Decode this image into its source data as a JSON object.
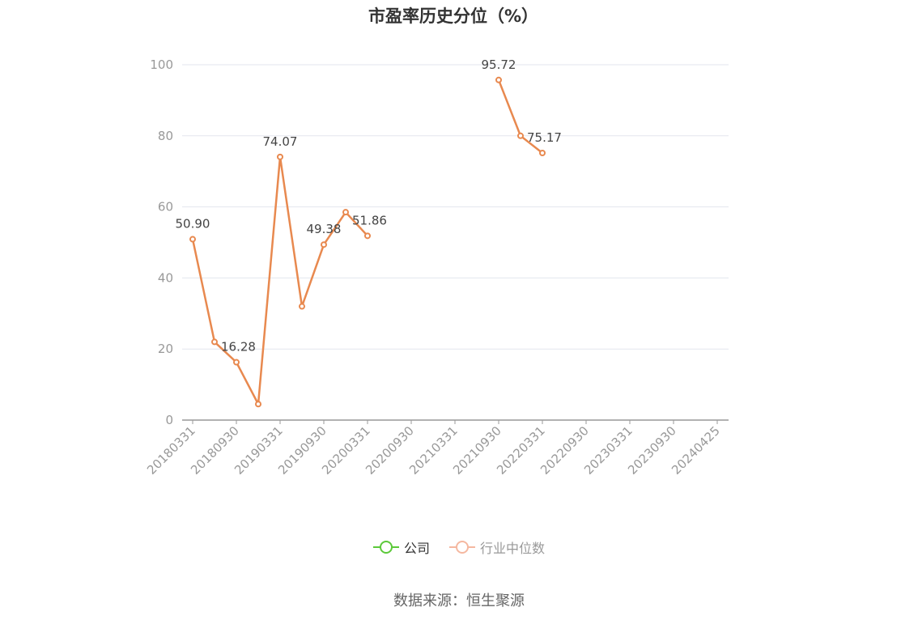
{
  "title": "市盈率历史分位（%）",
  "source": "数据来源：恒生聚源",
  "legend": [
    {
      "label": "公司",
      "color": "#5cc93a"
    },
    {
      "label": "行业中位数",
      "color": "#f5b8a0"
    }
  ],
  "colors": {
    "series_line": "#e8894f",
    "grid": "#e3e6ee",
    "axis": "#999999"
  },
  "chart_data": {
    "type": "line",
    "title": "市盈率历史分位（%）",
    "xlabel": "",
    "ylabel": "",
    "ylim": [
      0,
      100
    ],
    "yticks": [
      0,
      20,
      40,
      60,
      80,
      100
    ],
    "x": [
      "20180331",
      "20180630",
      "20180930",
      "20181231",
      "20190331",
      "20190630",
      "20190930",
      "20191231",
      "20200331",
      "20200630",
      "20200930",
      "20201231",
      "20210331",
      "20210630",
      "20210930",
      "20211231",
      "20220331",
      "20220630",
      "20220930",
      "20221231",
      "20230331",
      "20230630",
      "20230930",
      "20231231",
      "20240425"
    ],
    "x_tick_labels": [
      "20180331",
      "20180930",
      "20190331",
      "20190930",
      "20200331",
      "20200930",
      "20210331",
      "20210930",
      "20220331",
      "20220930",
      "20230331",
      "20230930",
      "20240425"
    ],
    "series": [
      {
        "name": "公司",
        "values": [
          50.9,
          22.0,
          16.28,
          4.5,
          74.07,
          32.0,
          49.38,
          58.5,
          51.86,
          null,
          null,
          null,
          null,
          null,
          95.72,
          80.0,
          75.17,
          null,
          null,
          null,
          null,
          null,
          null,
          null,
          null
        ],
        "labels": {
          "0": "50.90",
          "2": "16.28",
          "4": "74.07",
          "6": "49.38",
          "8": "51.86",
          "14": "95.72",
          "16": "75.17"
        }
      }
    ],
    "grid": true,
    "legend_position": "bottom"
  }
}
